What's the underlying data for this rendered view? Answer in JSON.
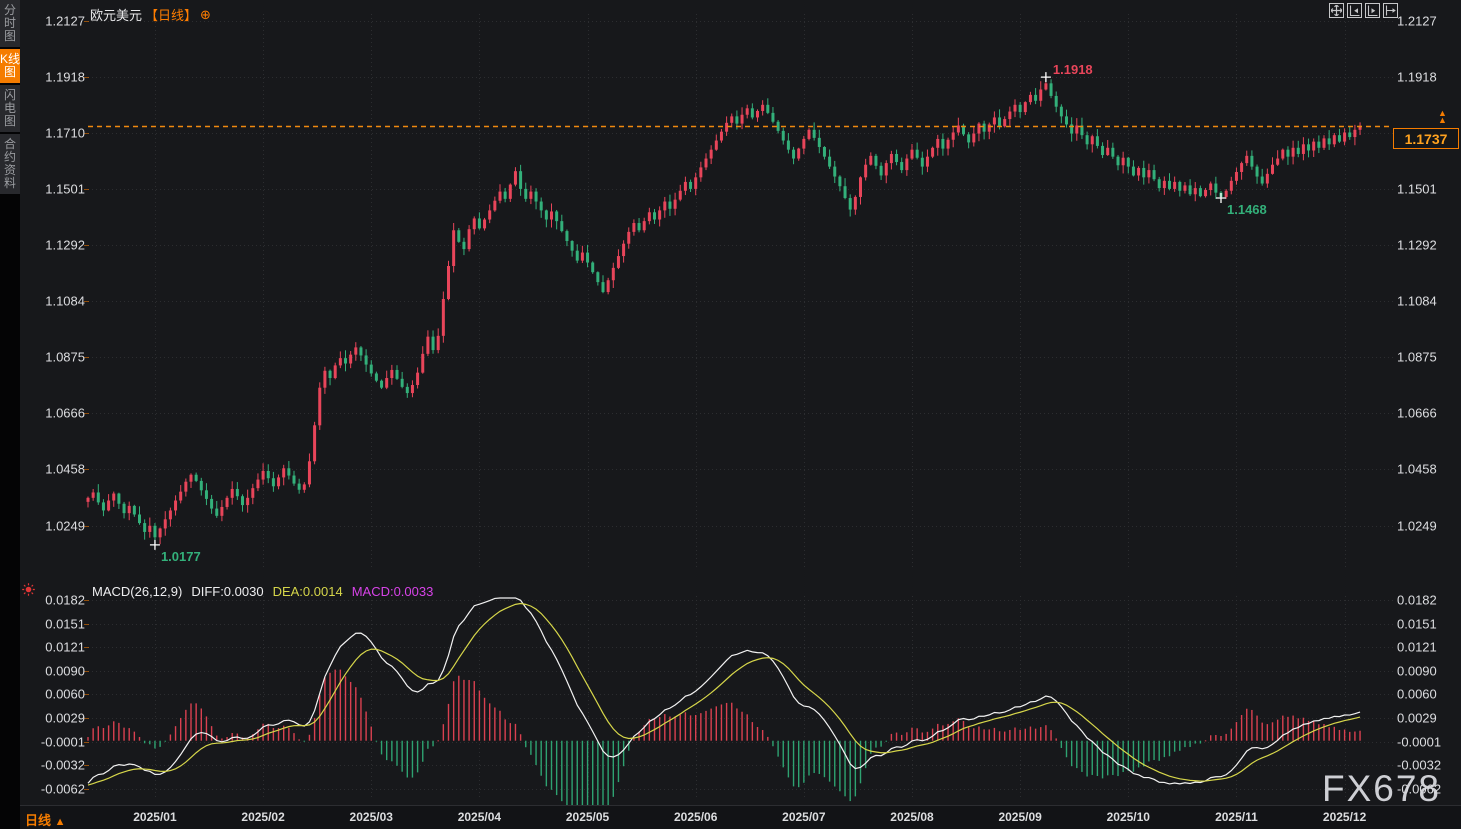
{
  "sidebar": {
    "tabs": [
      {
        "label": "分时图",
        "active": false
      },
      {
        "label": "K线图",
        "active": true
      },
      {
        "label": "闪电图",
        "active": false
      },
      {
        "label": "合约资料",
        "active": false
      }
    ]
  },
  "header": {
    "symbol": "欧元美元",
    "period_tag": "【日线】",
    "add_icon": "⊕"
  },
  "toolbar": {
    "icons": [
      {
        "name": "pan-tool-icon"
      },
      {
        "name": "compress-left-icon"
      },
      {
        "name": "scroll-to-latest-icon"
      },
      {
        "name": "shift-right-icon"
      }
    ]
  },
  "quote": {
    "last_price": "1.1737",
    "direction_marker": "▲"
  },
  "macd_panel": {
    "params": "MACD(26,12,9)",
    "diff_label": "DIFF:0.0030",
    "dea_label": "DEA:0.0014",
    "macd_label": "MACD:0.0033"
  },
  "footer": {
    "period_label": "日线",
    "arrow": "▲"
  },
  "watermark": "FX678",
  "colors": {
    "up": "#e8455a",
    "down": "#33b07a",
    "accent_orange": "#f57c00",
    "price_line": "#f0890f",
    "tag_text": "#ffa21f",
    "diff_line": "#f2f2f2",
    "dea_line": "#d6d64a",
    "macd_value": "#d743e8",
    "grid": "#2c2d30",
    "hist_up": "#d94050",
    "hist_down": "#2ea271"
  },
  "chart_data": {
    "type": "candlestick",
    "title": "欧元美元 EUR/USD 日线 (daily), 2025/01 - 2025/12",
    "timeframe": "daily",
    "x_tick_labels": [
      "2025/01",
      "2025/02",
      "2025/03",
      "2025/04",
      "2025/05",
      "2025/06",
      "2025/07",
      "2025/08",
      "2025/09",
      "2025/10",
      "2025/11",
      "2025/12"
    ],
    "month_tick_days": [
      13,
      34,
      55,
      76,
      97,
      118,
      139,
      160,
      181,
      202,
      223,
      244
    ],
    "y_axis_ticks": [
      1.2127,
      1.1918,
      1.171,
      1.1501,
      1.1292,
      1.1084,
      1.0875,
      1.0666,
      1.0458,
      1.0249
    ],
    "y_axis_tick_labels": [
      "1.2127",
      "1.1918",
      "1.1710",
      "1.1501",
      "1.1292",
      "1.1084",
      "1.0875",
      "1.0666",
      "1.0458",
      "1.0249"
    ],
    "last_price": 1.1737,
    "annotations": [
      {
        "day": 13,
        "kind": "low",
        "price": 1.0177,
        "label": "1.0177"
      },
      {
        "day": 186,
        "kind": "high",
        "price": 1.1918,
        "label": "1.1918"
      },
      {
        "day": 220,
        "kind": "low",
        "price": 1.1468,
        "label": "1.1468"
      }
    ],
    "closes": [
      1.0352,
      1.0372,
      1.0335,
      1.0305,
      1.0342,
      1.0368,
      1.033,
      1.0295,
      1.0322,
      1.029,
      1.0258,
      1.0225,
      1.0248,
      1.0205,
      1.0238,
      1.0272,
      1.0305,
      1.0342,
      1.0375,
      1.0412,
      1.0438,
      1.0415,
      1.038,
      1.0348,
      1.0312,
      1.0285,
      1.0318,
      1.0352,
      1.0385,
      1.0358,
      1.0325,
      1.0352,
      1.0388,
      1.042,
      1.0452,
      1.0425,
      1.0395,
      1.0428,
      1.0462,
      1.0435,
      1.0405,
      1.0382,
      1.0402,
      1.0488,
      1.0622,
      1.0762,
      1.0825,
      1.0798,
      1.0845,
      1.0872,
      1.0852,
      1.0885,
      1.0912,
      1.0882,
      1.0848,
      1.0815,
      1.0788,
      1.0762,
      1.0798,
      1.0828,
      1.0795,
      1.0765,
      1.0742,
      1.0772,
      1.0818,
      1.0888,
      1.0952,
      1.0902,
      1.0955,
      1.1092,
      1.1215,
      1.1348,
      1.1305,
      1.1278,
      1.1352,
      1.1392,
      1.1355,
      1.1388,
      1.1422,
      1.1458,
      1.1492,
      1.1465,
      1.1518,
      1.1568,
      1.1502,
      1.1465,
      1.1492,
      1.1455,
      1.1422,
      1.1388,
      1.1418,
      1.1382,
      1.1345,
      1.1308,
      1.1272,
      1.1235,
      1.1265,
      1.1228,
      1.1192,
      1.1155,
      1.1118,
      1.1162,
      1.1208,
      1.1252,
      1.1298,
      1.1342,
      1.1375,
      1.1348,
      1.1382,
      1.1415,
      1.1388,
      1.1422,
      1.1455,
      1.1428,
      1.1462,
      1.1495,
      1.1528,
      1.1502,
      1.1545,
      1.1582,
      1.1615,
      1.1648,
      1.1682,
      1.1715,
      1.1748,
      1.1772,
      1.1745,
      1.1778,
      1.1802,
      1.1768,
      1.1792,
      1.1815,
      1.1785,
      1.1752,
      1.1718,
      1.1682,
      1.1648,
      1.1615,
      1.1652,
      1.1688,
      1.1722,
      1.1692,
      1.1658,
      1.1622,
      1.1585,
      1.1548,
      1.1512,
      1.1468,
      1.1425,
      1.1472,
      1.1545,
      1.1592,
      1.1625,
      1.1588,
      1.1552,
      1.1598,
      1.1632,
      1.1602,
      1.1572,
      1.1615,
      1.1648,
      1.1618,
      1.1585,
      1.1622,
      1.1655,
      1.1688,
      1.1652,
      1.1685,
      1.1712,
      1.1738,
      1.1705,
      1.1675,
      1.1708,
      1.1745,
      1.1715,
      1.1742,
      1.1768,
      1.1735,
      1.1762,
      1.179,
      1.1815,
      1.1788,
      1.1825,
      1.1852,
      1.183,
      1.1872,
      1.1895,
      1.1848,
      1.1808,
      1.1772,
      1.1742,
      1.1708,
      1.1738,
      1.1702,
      1.1668,
      1.1698,
      1.1662,
      1.1628,
      1.1655,
      1.1622,
      1.159,
      1.1618,
      1.1585,
      1.1552,
      1.158,
      1.1545,
      1.1572,
      1.1538,
      1.1505,
      1.1532,
      1.1502,
      1.1528,
      1.1495,
      1.1515,
      1.1482,
      1.1505,
      1.1475,
      1.1498,
      1.1522,
      1.1488,
      1.1472,
      1.1495,
      1.1532,
      1.1565,
      1.1598,
      1.1625,
      1.1585,
      1.1548,
      1.1522,
      1.1558,
      1.1592,
      1.1615,
      1.1648,
      1.1622,
      1.1655,
      1.1632,
      1.1668,
      1.1645,
      1.1678,
      1.1655,
      1.169,
      1.1668,
      1.1702,
      1.1678,
      1.1712,
      1.1695,
      1.1722,
      1.1737
    ],
    "macd": {
      "params": [
        26,
        12,
        9
      ],
      "diff_last": 0.003,
      "dea_last": 0.0014,
      "macd_last": 0.0033,
      "y_axis_ticks": [
        0.0182,
        0.0151,
        0.0121,
        0.009,
        0.006,
        0.0029,
        -0.0001,
        -0.0032,
        -0.0062
      ],
      "y_axis_tick_labels": [
        "0.0182",
        "0.0151",
        "0.0121",
        "0.0090",
        "0.0060",
        "0.0029",
        "-0.0001",
        "-0.0032",
        "-0.0062"
      ]
    }
  }
}
